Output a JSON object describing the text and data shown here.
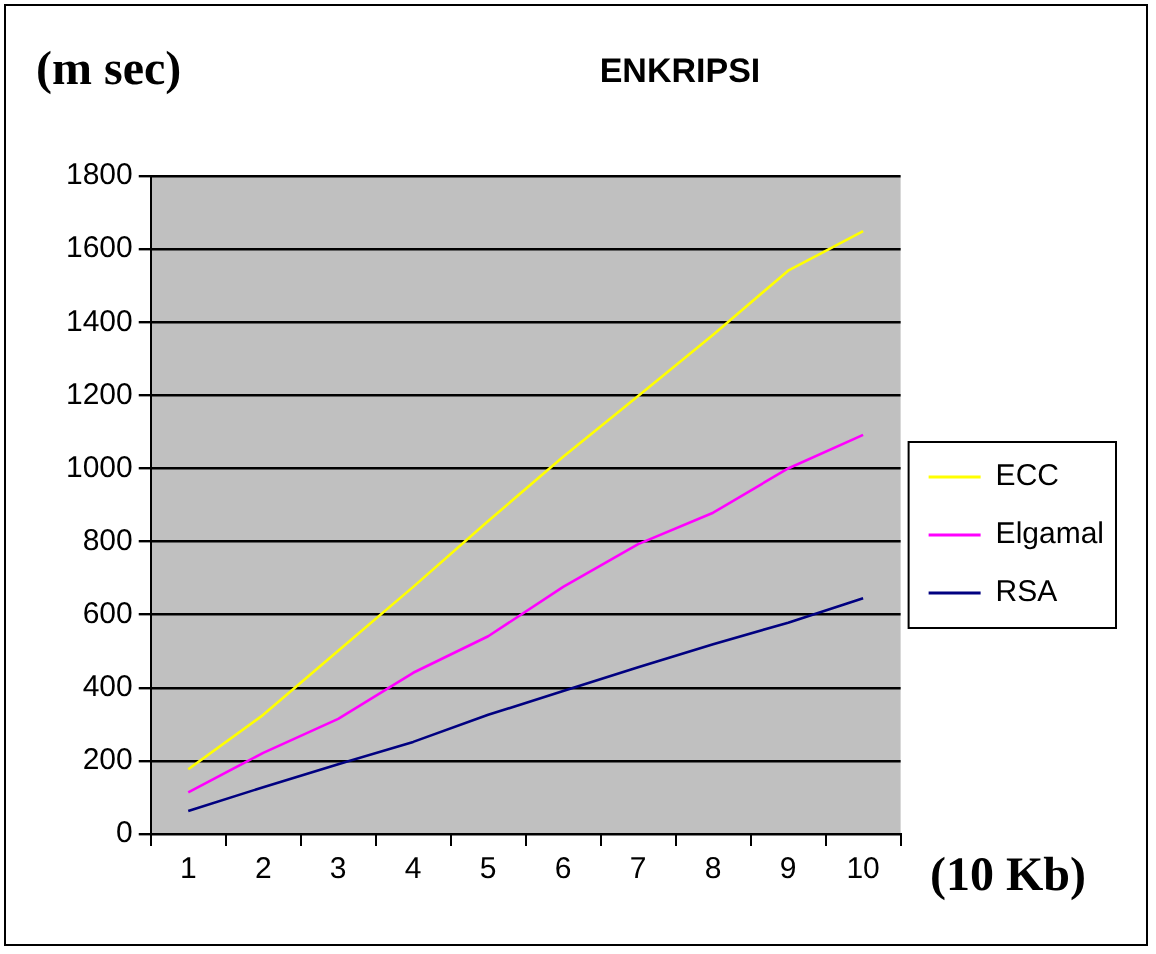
{
  "chart_data": {
    "type": "line",
    "title": "ENKRIPSI",
    "xlabel": "(10 Kb)",
    "ylabel": "(m sec)",
    "categories": [
      "1",
      "2",
      "3",
      "4",
      "5",
      "6",
      "7",
      "8",
      "9",
      "10"
    ],
    "series": [
      {
        "name": "ECC",
        "color": "#ffff00",
        "values": [
          177,
          326,
          501,
          676,
          856,
          1032,
          1198,
          1366,
          1541,
          1649
        ]
      },
      {
        "name": "Elgamal",
        "color": "#ff00ff",
        "values": [
          114,
          222,
          315,
          441,
          541,
          676,
          793,
          879,
          1000,
          1092
        ]
      },
      {
        "name": "RSA",
        "color": "#000080",
        "values": [
          63,
          128,
          191,
          252,
          326,
          391,
          456,
          519,
          578,
          645
        ]
      }
    ],
    "ylim": [
      0,
      1800
    ],
    "yticks": [
      0,
      200,
      400,
      600,
      800,
      1000,
      1200,
      1400,
      1600,
      1800
    ],
    "grid": "y",
    "legend": "right",
    "marker": "none",
    "line_style": "solid"
  }
}
